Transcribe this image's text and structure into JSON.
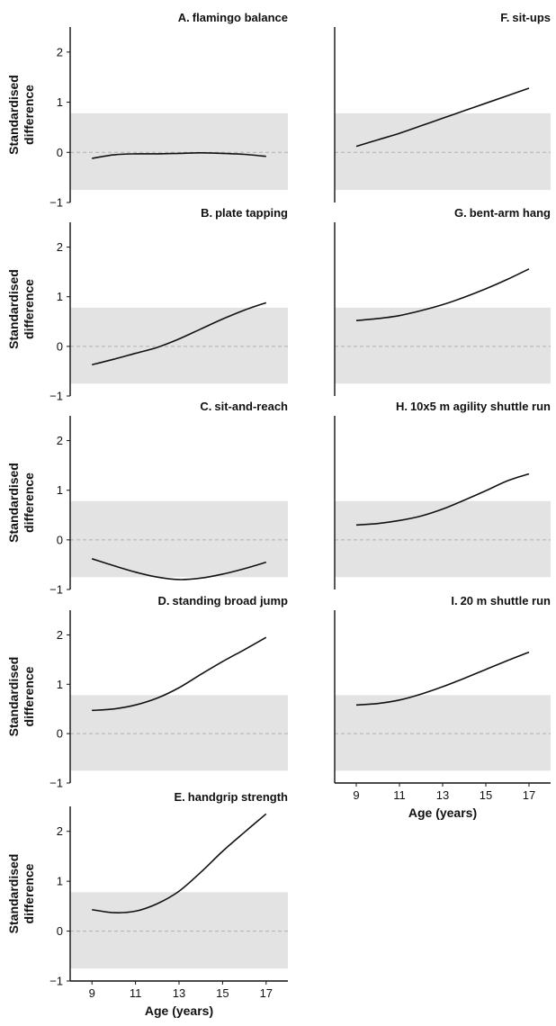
{
  "figure": {
    "ylabel_line1": "Standardised",
    "ylabel_line2": "difference",
    "xlabel": "Age (years)"
  },
  "chart_data": [
    {
      "type": "line",
      "letter": "A.",
      "title": "flamingo balance",
      "x": [
        9,
        10,
        11,
        12,
        13,
        14,
        15,
        16,
        17
      ],
      "y": [
        -0.12,
        -0.05,
        -0.03,
        -0.03,
        -0.02,
        -0.01,
        -0.02,
        -0.04,
        -0.08
      ],
      "ylim": [
        -1,
        2.5
      ],
      "yticks": [
        -1,
        0,
        1,
        2
      ],
      "xlim": [
        8,
        18
      ],
      "xticks": [
        9,
        11,
        13,
        15,
        17
      ],
      "band": [
        -0.75,
        0.78
      ],
      "reference_line": 0,
      "show_xticks": false
    },
    {
      "type": "line",
      "letter": "B.",
      "title": "plate tapping",
      "x": [
        9,
        10,
        11,
        12,
        13,
        14,
        15,
        16,
        17
      ],
      "y": [
        -0.37,
        -0.26,
        -0.14,
        -0.02,
        0.15,
        0.35,
        0.55,
        0.73,
        0.88
      ],
      "ylim": [
        -1,
        2.5
      ],
      "yticks": [
        -1,
        0,
        1,
        2
      ],
      "xlim": [
        8,
        18
      ],
      "xticks": [
        9,
        11,
        13,
        15,
        17
      ],
      "band": [
        -0.75,
        0.78
      ],
      "reference_line": 0,
      "show_xticks": false
    },
    {
      "type": "line",
      "letter": "C.",
      "title": "sit-and-reach",
      "x": [
        9,
        10,
        11,
        12,
        13,
        14,
        15,
        16,
        17
      ],
      "y": [
        -0.38,
        -0.52,
        -0.65,
        -0.75,
        -0.8,
        -0.77,
        -0.69,
        -0.58,
        -0.45
      ],
      "ylim": [
        -1,
        2.5
      ],
      "yticks": [
        -1,
        0,
        1,
        2
      ],
      "xlim": [
        8,
        18
      ],
      "xticks": [
        9,
        11,
        13,
        15,
        17
      ],
      "band": [
        -0.75,
        0.78
      ],
      "reference_line": 0,
      "show_xticks": false
    },
    {
      "type": "line",
      "letter": "D.",
      "title": "standing broad jump",
      "x": [
        9,
        10,
        11,
        12,
        13,
        14,
        15,
        16,
        17
      ],
      "y": [
        0.47,
        0.5,
        0.58,
        0.72,
        0.93,
        1.2,
        1.46,
        1.7,
        1.95
      ],
      "ylim": [
        -1,
        2.5
      ],
      "yticks": [
        -1,
        0,
        1,
        2
      ],
      "xlim": [
        8,
        18
      ],
      "xticks": [
        9,
        11,
        13,
        15,
        17
      ],
      "band": [
        -0.75,
        0.78
      ],
      "reference_line": 0,
      "show_xticks": false
    },
    {
      "type": "line",
      "letter": "E.",
      "title": "handgrip strength",
      "x": [
        9,
        10,
        11,
        12,
        13,
        14,
        15,
        16,
        17
      ],
      "y": [
        0.43,
        0.37,
        0.4,
        0.55,
        0.8,
        1.18,
        1.6,
        1.98,
        2.35
      ],
      "ylim": [
        -1,
        2.5
      ],
      "yticks": [
        -1,
        0,
        1,
        2
      ],
      "xlim": [
        8,
        18
      ],
      "xticks": [
        9,
        11,
        13,
        15,
        17
      ],
      "band": [
        -0.75,
        0.78
      ],
      "reference_line": 0,
      "show_xticks": true
    },
    {
      "type": "line",
      "letter": "F.",
      "title": "sit-ups",
      "x": [
        9,
        10,
        11,
        12,
        13,
        14,
        15,
        16,
        17
      ],
      "y": [
        0.12,
        0.25,
        0.38,
        0.53,
        0.68,
        0.83,
        0.98,
        1.13,
        1.28
      ],
      "ylim": [
        -1,
        2.5
      ],
      "yticks": [
        -1,
        0,
        1,
        2
      ],
      "xlim": [
        8,
        18
      ],
      "xticks": [
        9,
        11,
        13,
        15,
        17
      ],
      "band": [
        -0.75,
        0.78
      ],
      "reference_line": 0,
      "show_xticks": false
    },
    {
      "type": "line",
      "letter": "G.",
      "title": "bent-arm hang",
      "x": [
        9,
        10,
        11,
        12,
        13,
        14,
        15,
        16,
        17
      ],
      "y": [
        0.52,
        0.56,
        0.62,
        0.72,
        0.84,
        0.99,
        1.16,
        1.35,
        1.56
      ],
      "ylim": [
        -1,
        2.5
      ],
      "yticks": [
        -1,
        0,
        1,
        2
      ],
      "xlim": [
        8,
        18
      ],
      "xticks": [
        9,
        11,
        13,
        15,
        17
      ],
      "band": [
        -0.75,
        0.78
      ],
      "reference_line": 0,
      "show_xticks": false
    },
    {
      "type": "line",
      "letter": "H.",
      "title": "10x5 m agility shuttle run",
      "x": [
        9,
        10,
        11,
        12,
        13,
        14,
        15,
        16,
        17
      ],
      "y": [
        0.3,
        0.33,
        0.39,
        0.48,
        0.62,
        0.8,
        0.99,
        1.19,
        1.33
      ],
      "ylim": [
        -1,
        2.5
      ],
      "yticks": [
        -1,
        0,
        1,
        2
      ],
      "xlim": [
        8,
        18
      ],
      "xticks": [
        9,
        11,
        13,
        15,
        17
      ],
      "band": [
        -0.75,
        0.78
      ],
      "reference_line": 0,
      "show_xticks": false
    },
    {
      "type": "line",
      "letter": "I.",
      "title": "20 m shuttle run",
      "x": [
        9,
        10,
        11,
        12,
        13,
        14,
        15,
        16,
        17
      ],
      "y": [
        0.58,
        0.61,
        0.68,
        0.8,
        0.95,
        1.12,
        1.3,
        1.48,
        1.65
      ],
      "ylim": [
        -1,
        2.5
      ],
      "yticks": [
        -1,
        0,
        1,
        2
      ],
      "xlim": [
        8,
        18
      ],
      "xticks": [
        9,
        11,
        13,
        15,
        17
      ],
      "band": [
        -0.75,
        0.78
      ],
      "reference_line": 0,
      "show_xticks": true
    }
  ]
}
